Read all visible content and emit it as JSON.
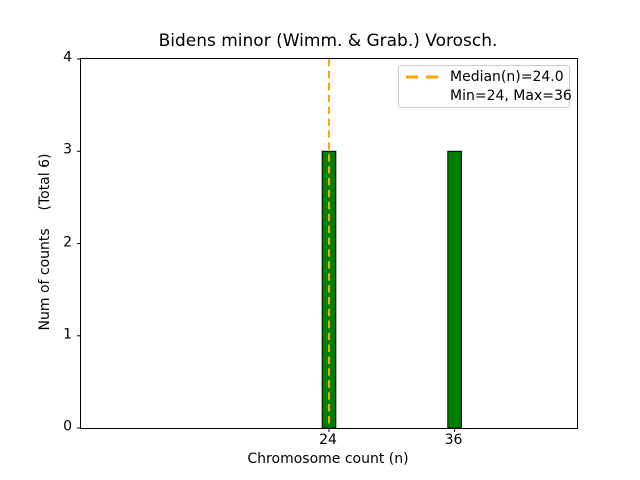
{
  "chart_data": {
    "type": "bar",
    "title": "Bidens minor (Wimm. & Grab.) Vorosch.",
    "xlabel": "Chromosome count (n)",
    "ylabel": "Num of counts    (Total 6)",
    "x": [
      24,
      36
    ],
    "values": [
      3,
      3
    ],
    "bar_width_units": 1.3,
    "xlim": [
      0.3,
      47.7
    ],
    "ylim": [
      0,
      4
    ],
    "xticks": [
      24,
      36
    ],
    "yticks": [
      0,
      1,
      2,
      3,
      4
    ],
    "median": 24.0,
    "min": 24,
    "max": 36,
    "total_counts": 6,
    "grid": false,
    "legend_position": "upper right",
    "legend": [
      {
        "label": "Median(n)=24.0",
        "sample": "dashed-line"
      },
      {
        "label": "Min=24, Max=36",
        "sample": "none"
      }
    ],
    "colors": {
      "bar_fill": "#008000",
      "bar_edge": "#000000",
      "median_line": "#FFA500",
      "spine": "#000000",
      "text": "#000000",
      "background": "#ffffff",
      "legend_border": "#cccccc"
    }
  }
}
